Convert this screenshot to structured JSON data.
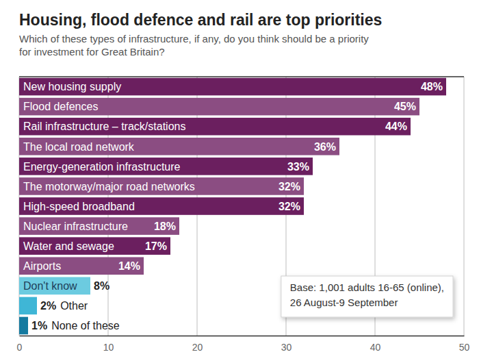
{
  "chart_data": {
    "type": "bar",
    "orientation": "horizontal",
    "title": "Housing, flood defence and rail are top priorities",
    "subtitle": [
      "Which of these types of infrastructure, if any, do you think should be a priority",
      "for investment for Great Britain?"
    ],
    "categories": [
      "New housing supply",
      "Flood defences",
      "Rail infrastructure – track/stations",
      "The local road network",
      "Energy-generation infrastructure",
      "The motorway/major road networks",
      "High-speed broadband",
      "Nuclear infrastructure",
      "Water and sewage",
      "Airports",
      "Don't know",
      "Other",
      "None of these"
    ],
    "values": [
      48,
      45,
      44,
      36,
      33,
      32,
      32,
      18,
      17,
      14,
      8,
      2,
      1
    ],
    "value_labels": [
      "48%",
      "45%",
      "44%",
      "36%",
      "33%",
      "32%",
      "32%",
      "18%",
      "17%",
      "14%",
      "8%",
      "2%",
      "1%"
    ],
    "colors": [
      "#6b1f5f",
      "#8b4d82",
      "#6b1f5f",
      "#8b4d82",
      "#6b1f5f",
      "#8b4d82",
      "#6b1f5f",
      "#8b4d82",
      "#6b1f5f",
      "#8b4d82",
      "#6ccbe0",
      "#3fb6d6",
      "#157aa0"
    ],
    "xlim": [
      0,
      50
    ],
    "xticks": [
      0,
      10,
      20,
      30,
      40,
      50
    ],
    "grid": true,
    "data_labels": true,
    "annotations": [
      "Base: 1,001 adults 16-65 (online),",
      "26 August-9 September"
    ]
  }
}
